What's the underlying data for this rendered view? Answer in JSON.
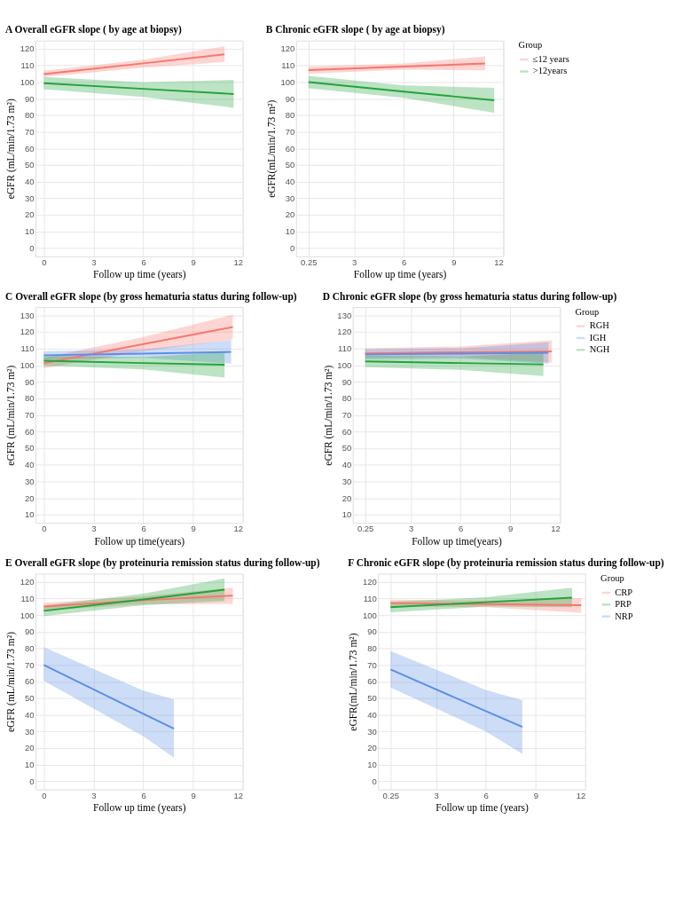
{
  "chart_data": [
    {
      "type": "line",
      "title": "A  Overall eGFR slope ( by age at biopsy)",
      "xlabel": "Follow up time (years)",
      "ylabel": "eGFR (mL/min/1.73 m²)",
      "xlim": [
        -0.5,
        12
      ],
      "xticks": [
        0,
        3,
        6,
        9,
        12
      ],
      "ylim": [
        -5,
        125
      ],
      "yticks": [
        0,
        10,
        20,
        30,
        40,
        50,
        60,
        70,
        80,
        90,
        100,
        110,
        120
      ],
      "grid": true,
      "legend": false,
      "series": [
        {
          "color": "#f8766d",
          "x": [
            0,
            6,
            10.9
          ],
          "values": [
            104.8,
            111.3,
            116.7
          ],
          "lower": [
            103,
            108.7,
            112
          ],
          "upper": [
            106.8,
            113.5,
            121.5
          ]
        },
        {
          "color": "#22a33a",
          "x": [
            0,
            6,
            11.45
          ],
          "values": [
            99.3,
            95.9,
            92.8
          ],
          "lower": [
            95.7,
            91,
            84.5
          ],
          "upper": [
            103,
            99.8,
            101.3
          ]
        }
      ]
    },
    {
      "type": "line",
      "title": "B  Chronic eGFR slope ( by age at biopsy)",
      "xlabel": "Follow up time (years)",
      "ylabel": "eGFR(mL/min/1.73 m²)",
      "xlim": [
        -0.5,
        12
      ],
      "xticks": [
        0.25,
        3,
        6,
        9,
        12
      ],
      "ylim": [
        -5,
        125
      ],
      "yticks": [
        0,
        10,
        20,
        30,
        40,
        50,
        60,
        70,
        80,
        90,
        100,
        110,
        120
      ],
      "grid": true,
      "legend": "right",
      "legend_title": "Group",
      "series": [
        {
          "name": "≤12 years",
          "color": "#f8766d",
          "x": [
            0.25,
            6,
            10.9
          ],
          "values": [
            107.2,
            109.3,
            111.2
          ],
          "lower": [
            105,
            107.5,
            107
          ],
          "upper": [
            109.3,
            111.2,
            115.5
          ]
        },
        {
          "name": ">12years",
          "color": "#22a33a",
          "x": [
            0.25,
            6,
            11.45
          ],
          "values": [
            100,
            94.2,
            89
          ],
          "lower": [
            96.2,
            90.5,
            81.5
          ],
          "upper": [
            103.7,
            98,
            96.5
          ]
        }
      ]
    },
    {
      "type": "line",
      "title": "C  Overall eGFR slope (by gross hematuria status during follow-up)",
      "xlabel": "Follow up time(years)",
      "ylabel": "eGFR (mL/min/1.73 m²)",
      "xlim": [
        -0.5,
        12
      ],
      "xticks": [
        0,
        3,
        6,
        9,
        12
      ],
      "ylim": [
        5,
        135
      ],
      "yticks": [
        10,
        20,
        30,
        40,
        50,
        60,
        70,
        80,
        90,
        100,
        110,
        120,
        130
      ],
      "grid": true,
      "legend": false,
      "series": [
        {
          "color": "#f8766d",
          "x": [
            0,
            6,
            11.4
          ],
          "values": [
            101.2,
            112.7,
            123
          ],
          "lower": [
            98.2,
            108.5,
            115.5
          ],
          "upper": [
            104.5,
            117,
            130.5
          ]
        },
        {
          "color": "#5a8ee6",
          "x": [
            0,
            6,
            11.3
          ],
          "values": [
            106,
            107,
            108
          ],
          "lower": [
            103.5,
            104.5,
            101
          ],
          "upper": [
            108.5,
            109.5,
            115.2
          ]
        },
        {
          "color": "#22a33a",
          "x": [
            0,
            6,
            10.9
          ],
          "values": [
            102.7,
            101.3,
            100.3
          ],
          "lower": [
            99.8,
            97.5,
            92.5
          ],
          "upper": [
            105.5,
            105,
            107.8
          ]
        }
      ]
    },
    {
      "type": "line",
      "title": "D  Chronic eGFR slope (by gross hematuria status during follow-up)",
      "xlabel": "Follow up time(years)",
      "ylabel": "eGFR (mL/min/1.73 m²)",
      "xlim": [
        -0.5,
        12
      ],
      "xticks": [
        0.25,
        3,
        6,
        9,
        12
      ],
      "ylim": [
        5,
        135
      ],
      "yticks": [
        10,
        20,
        30,
        40,
        50,
        60,
        70,
        80,
        90,
        100,
        110,
        120,
        130
      ],
      "grid": true,
      "legend": "right",
      "legend_title": "Group",
      "series": [
        {
          "name": "RGH",
          "color": "#f8766d",
          "x": [
            0.25,
            6,
            11.5
          ],
          "values": [
            107.2,
            107.8,
            108.3
          ],
          "lower": [
            104.5,
            105,
            101.5
          ],
          "upper": [
            110.2,
            111.3,
            115
          ]
        },
        {
          "name": "IGH",
          "color": "#5a8ee6",
          "x": [
            0.25,
            6,
            11.3
          ],
          "values": [
            106.5,
            107,
            107.5
          ],
          "lower": [
            103.5,
            104,
            101
          ],
          "upper": [
            109.5,
            110.2,
            113.8
          ]
        },
        {
          "name": "NGH",
          "color": "#22a33a",
          "x": [
            0.25,
            6,
            11
          ],
          "values": [
            102.3,
            101.3,
            100.5
          ],
          "lower": [
            98.8,
            97.2,
            93.5
          ],
          "upper": [
            105.8,
            105.3,
            107.5
          ]
        }
      ]
    },
    {
      "type": "line",
      "title": "E  Overall eGFR slope (by proteinuria remission status during  follow-up)",
      "xlabel": "Follow up time (years)",
      "ylabel": "eGFR (mL/min/1.73 m²)",
      "xlim": [
        -0.5,
        12
      ],
      "xticks": [
        0,
        3,
        6,
        9,
        12
      ],
      "ylim": [
        -5,
        125
      ],
      "yticks": [
        0,
        10,
        20,
        30,
        40,
        50,
        60,
        70,
        80,
        90,
        100,
        110,
        120
      ],
      "grid": true,
      "legend": false,
      "series": [
        {
          "color": "#f8766d",
          "x": [
            0,
            6,
            11.4
          ],
          "values": [
            105.2,
            109,
            111.8
          ],
          "lower": [
            103,
            106.5,
            106.8
          ],
          "upper": [
            107.3,
            111.3,
            116.6
          ]
        },
        {
          "color": "#22a33a",
          "x": [
            0,
            6,
            10.9
          ],
          "values": [
            102.6,
            109.5,
            115.4
          ],
          "lower": [
            99.5,
            106,
            108.5
          ],
          "upper": [
            105.8,
            113,
            122.2
          ]
        },
        {
          "color": "#5a8ee6",
          "x": [
            0,
            6,
            7.85
          ],
          "values": [
            70,
            40.6,
            31.6
          ],
          "lower": [
            60.5,
            27,
            14.2
          ],
          "upper": [
            80.8,
            54.5,
            49.4
          ]
        }
      ]
    },
    {
      "type": "line",
      "title": "F  Chronic eGFR slope (by proteinuria remission status during  follow-up)",
      "xlabel": "Follow up time (years)",
      "ylabel": "eGFR(mL/min/1.73 m²)",
      "xlim": [
        -0.5,
        12
      ],
      "xticks": [
        0.25,
        3,
        6,
        9,
        12
      ],
      "ylim": [
        -5,
        125
      ],
      "yticks": [
        0,
        10,
        20,
        30,
        40,
        50,
        60,
        70,
        80,
        90,
        100,
        110,
        120
      ],
      "grid": true,
      "legend": "right",
      "legend_title": "Group",
      "series": [
        {
          "name": "CRP",
          "color": "#f8766d",
          "x": [
            0.25,
            6,
            11.75
          ],
          "values": [
            107.3,
            106.7,
            106
          ],
          "lower": [
            105.3,
            104.8,
            101.5
          ],
          "upper": [
            109.3,
            108.8,
            110.3
          ]
        },
        {
          "name": "PRP",
          "color": "#22a33a",
          "x": [
            0.25,
            6,
            11.2
          ],
          "values": [
            104.8,
            107.8,
            110.6
          ],
          "lower": [
            101.7,
            105.2,
            104.8
          ],
          "upper": [
            108,
            110.8,
            116.6
          ]
        },
        {
          "name": "NRP",
          "color": "#5a8ee6",
          "x": [
            0.25,
            6,
            8.2
          ],
          "values": [
            67.3,
            42.2,
            32.7
          ],
          "lower": [
            56.5,
            30,
            16.5
          ],
          "upper": [
            78.3,
            55,
            48.8
          ]
        }
      ]
    }
  ]
}
